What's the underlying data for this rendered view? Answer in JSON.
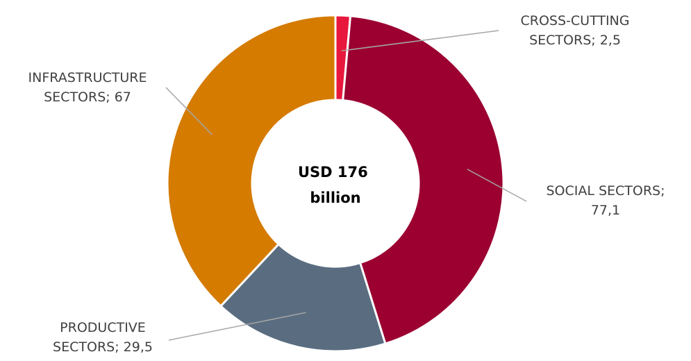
{
  "chart_data": {
    "type": "pie",
    "variant": "donut",
    "center_label": [
      "USD 176",
      "billion"
    ],
    "slices": [
      {
        "label": [
          "CROSS-CUTTING",
          "SECTORS; 2,5"
        ],
        "value": 2.5,
        "color": "#e8183c"
      },
      {
        "label": [
          "SOCIAL SECTORS;",
          "77,1"
        ],
        "value": 77.1,
        "color": "#9b0031"
      },
      {
        "label": [
          "PRODUCTIVE",
          "SECTORS; 29,5"
        ],
        "value": 29.5,
        "color": "#5a6d80"
      },
      {
        "label": [
          "INFRASTRUCTURE",
          "SECTORS; 67"
        ],
        "value": 67,
        "color": "#d57b00"
      }
    ],
    "legend": "none"
  }
}
